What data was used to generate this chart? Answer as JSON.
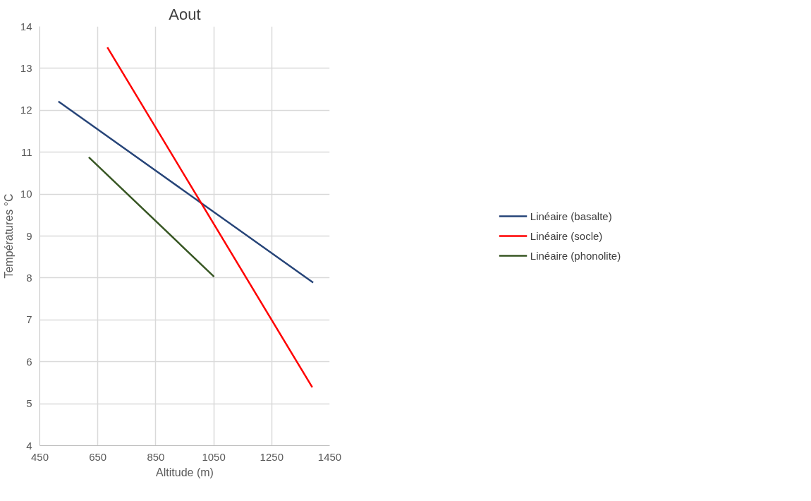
{
  "chart_data": {
    "type": "line",
    "title": "Aout",
    "xlabel": "Altitude (m)",
    "ylabel": "Températures °C",
    "xlim": [
      450,
      1450
    ],
    "xticks": [
      450,
      650,
      850,
      1050,
      1250,
      1450
    ],
    "ylim": [
      4,
      14
    ],
    "yticks": [
      4,
      5,
      6,
      7,
      8,
      9,
      10,
      11,
      12,
      13,
      14
    ],
    "grid": true,
    "legend": "right",
    "marker": "none",
    "line_style": "solid",
    "series": [
      {
        "name": "Linéaire (basalte)",
        "color": "#264478",
        "x": [
          514,
          1393
        ],
        "values": [
          12.21,
          7.89
        ]
      },
      {
        "name": "Linéaire (socle)",
        "color": "#ff0000",
        "x": [
          683,
          1390
        ],
        "values": [
          13.5,
          5.39
        ]
      },
      {
        "name": "Linéaire (phonolite)",
        "color": "#375623",
        "x": [
          619,
          1051
        ],
        "values": [
          10.88,
          8.03
        ]
      }
    ]
  }
}
